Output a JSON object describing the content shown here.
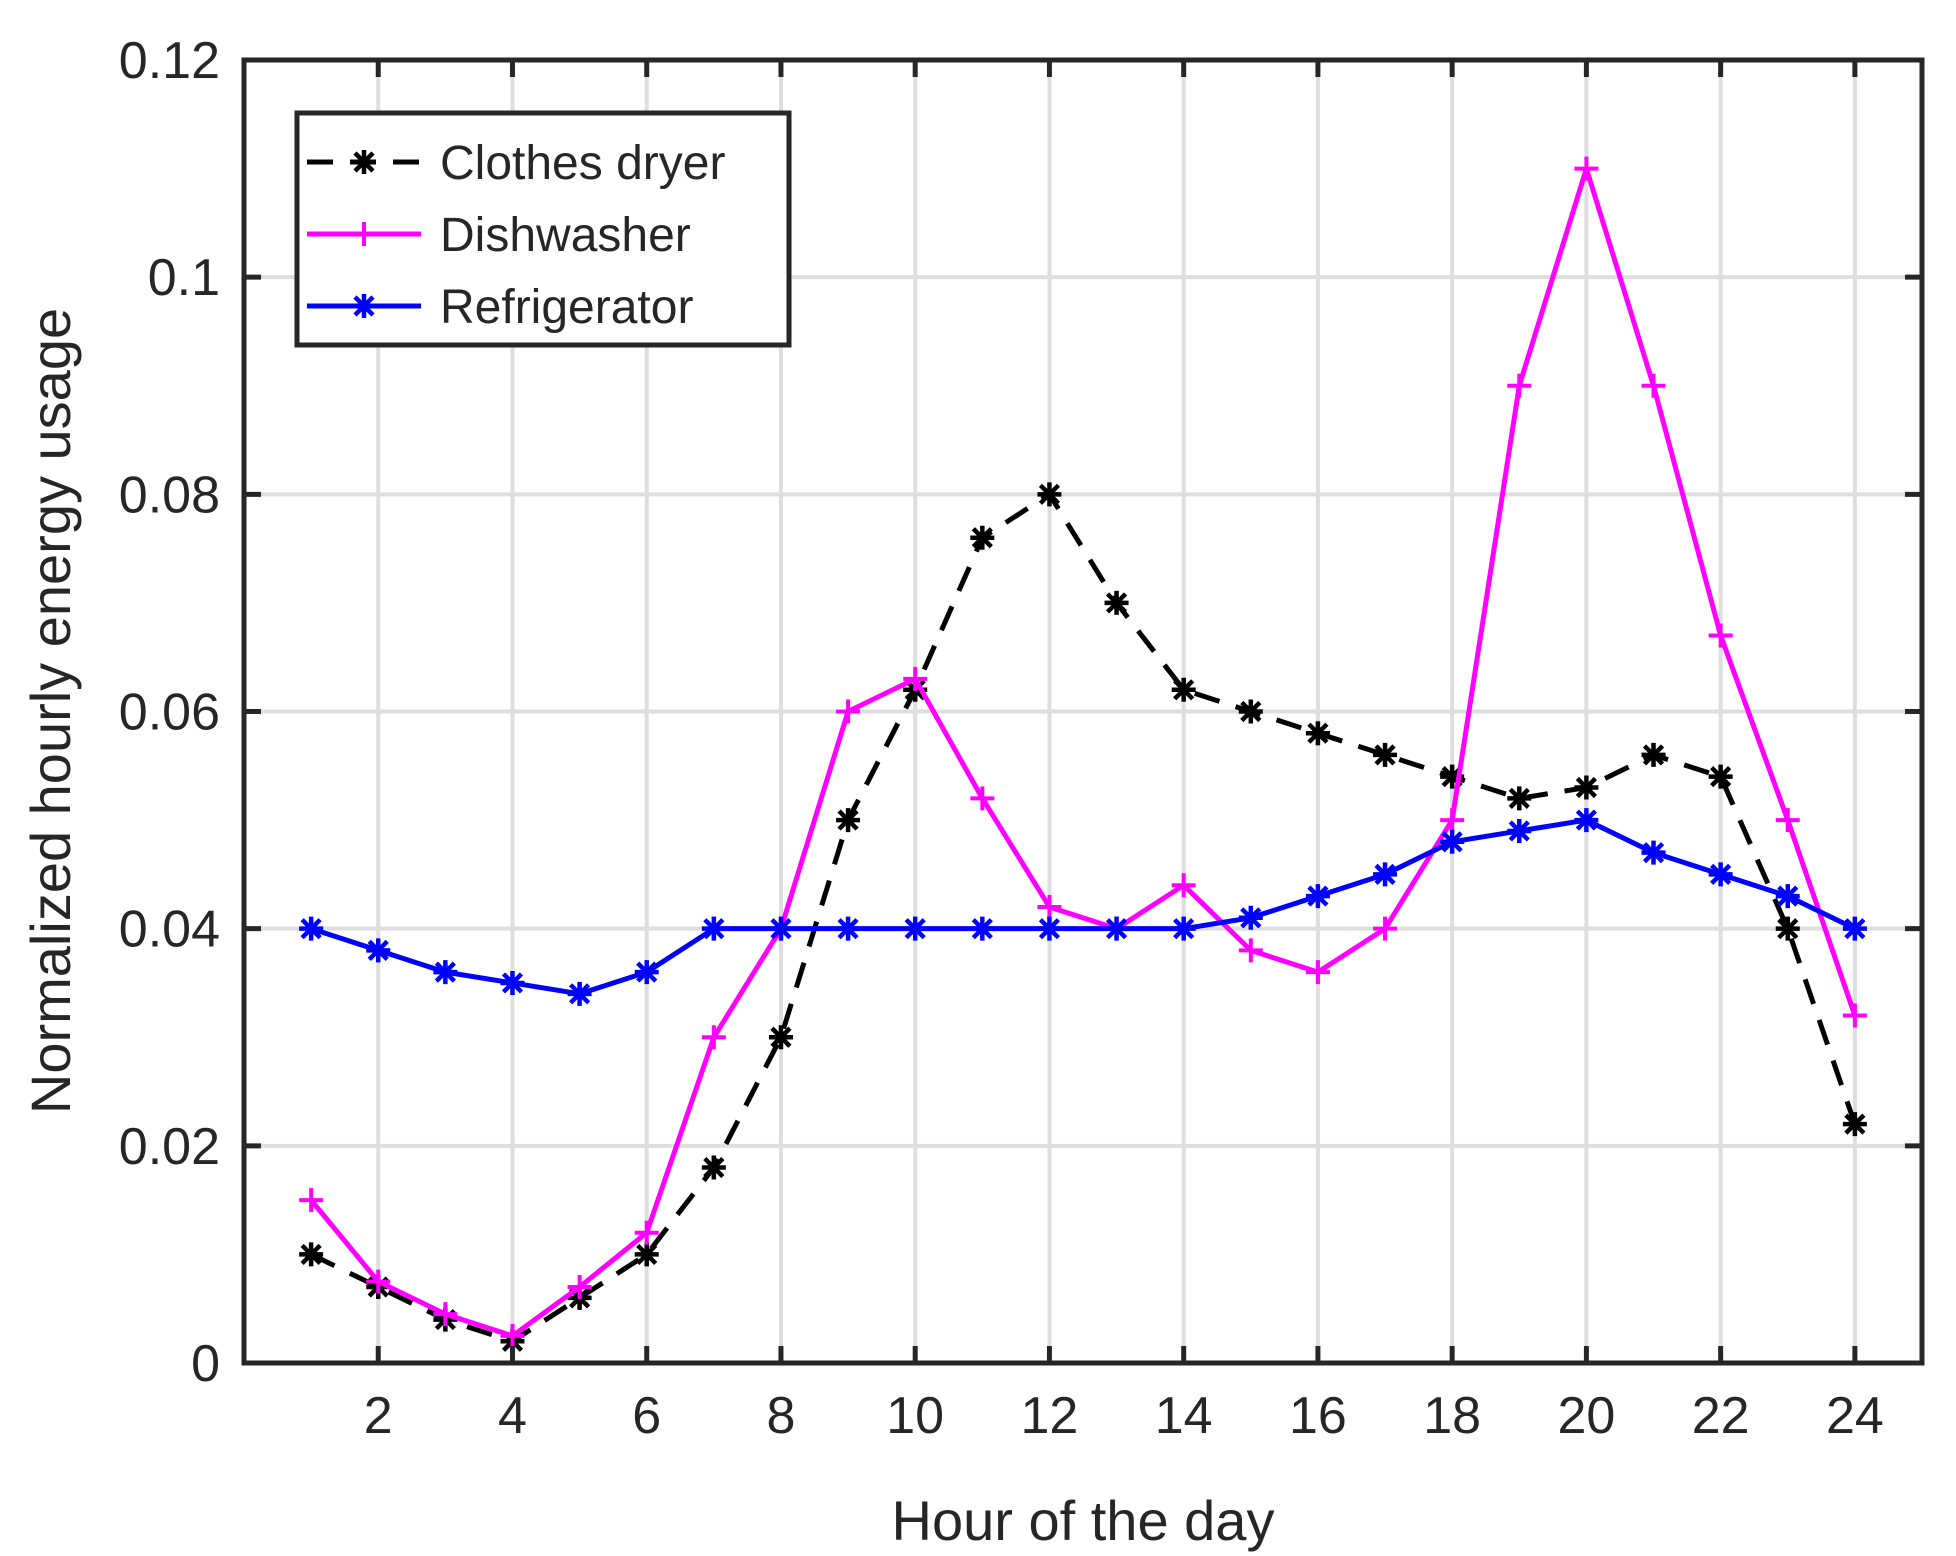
{
  "chart_data": {
    "type": "line",
    "title": "",
    "xlabel": "Hour of the day",
    "ylabel": "Normalized hourly energy usage",
    "xlim": [
      0,
      25
    ],
    "ylim": [
      0,
      0.12
    ],
    "grid": true,
    "x": [
      1,
      2,
      3,
      4,
      5,
      6,
      7,
      8,
      9,
      10,
      11,
      12,
      13,
      14,
      15,
      16,
      17,
      18,
      19,
      20,
      21,
      22,
      23,
      24
    ],
    "x_ticks": [
      2,
      4,
      6,
      8,
      10,
      12,
      14,
      16,
      18,
      20,
      22,
      24
    ],
    "x_tick_labels": [
      "2",
      "4",
      "6",
      "8",
      "10",
      "12",
      "14",
      "16",
      "18",
      "20",
      "22",
      "24"
    ],
    "y_ticks": [
      0,
      0.02,
      0.04,
      0.06,
      0.08,
      0.1,
      0.12
    ],
    "y_tick_labels": [
      "0",
      "0.02",
      "0.04",
      "0.06",
      "0.08",
      "0.1",
      "0.12"
    ],
    "legend_position": "top-left",
    "series": [
      {
        "name": "Clothes dryer",
        "color": "#000000",
        "line_style": "dashed",
        "marker": "asterisk",
        "values": [
          0.01,
          0.007,
          0.004,
          0.002,
          0.006,
          0.01,
          0.018,
          0.03,
          0.05,
          0.062,
          0.076,
          0.08,
          0.07,
          0.062,
          0.06,
          0.058,
          0.056,
          0.054,
          0.052,
          0.053,
          0.056,
          0.054,
          0.04,
          0.022
        ]
      },
      {
        "name": "Dishwasher",
        "color": "#ff00ff",
        "line_style": "solid",
        "marker": "plus",
        "values": [
          0.015,
          0.0075,
          0.0045,
          0.0025,
          0.007,
          0.012,
          0.03,
          0.04,
          0.06,
          0.063,
          0.052,
          0.042,
          0.04,
          0.044,
          0.038,
          0.036,
          0.04,
          0.05,
          0.09,
          0.11,
          0.09,
          0.067,
          0.05,
          0.032
        ]
      },
      {
        "name": "Refrigerator",
        "color": "#0000ff",
        "line_style": "solid",
        "marker": "asterisk",
        "values": [
          0.04,
          0.038,
          0.036,
          0.035,
          0.034,
          0.036,
          0.04,
          0.04,
          0.04,
          0.04,
          0.04,
          0.04,
          0.04,
          0.04,
          0.041,
          0.043,
          0.045,
          0.048,
          0.049,
          0.05,
          0.047,
          0.045,
          0.043,
          0.04
        ]
      }
    ]
  }
}
